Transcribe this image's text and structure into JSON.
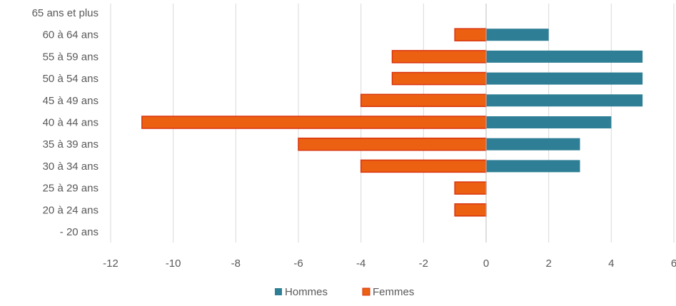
{
  "chart_data": {
    "type": "bar",
    "orientation": "horizontal",
    "title": "",
    "xlabel": "",
    "ylabel": "",
    "categories": [
      "65 ans et plus",
      "60 à 64 ans",
      "55 à 59 ans",
      "50 à 54 ans",
      "45 à 49 ans",
      "40 à 44 ans",
      "35 à 39 ans",
      "30 à 34 ans",
      "25 à 29 ans",
      "20 à 24 ans",
      "- 20 ans"
    ],
    "series": [
      {
        "name": "Hommes",
        "color": "#2e7f95",
        "values": [
          0,
          2,
          5,
          5,
          5,
          4,
          3,
          3,
          0,
          0,
          0
        ]
      },
      {
        "name": "Femmes",
        "color": "#ec6012",
        "values": [
          0,
          -1,
          -3,
          -3,
          -4,
          -11,
          -6,
          -4,
          -1,
          -1,
          0
        ]
      }
    ],
    "xlim": [
      -12,
      6
    ],
    "xticks": [
      "-12",
      "-10",
      "-8",
      "-6",
      "-4",
      "-2",
      "0",
      "2",
      "4",
      "6"
    ],
    "grid": "vertical",
    "legend": "bottom"
  }
}
